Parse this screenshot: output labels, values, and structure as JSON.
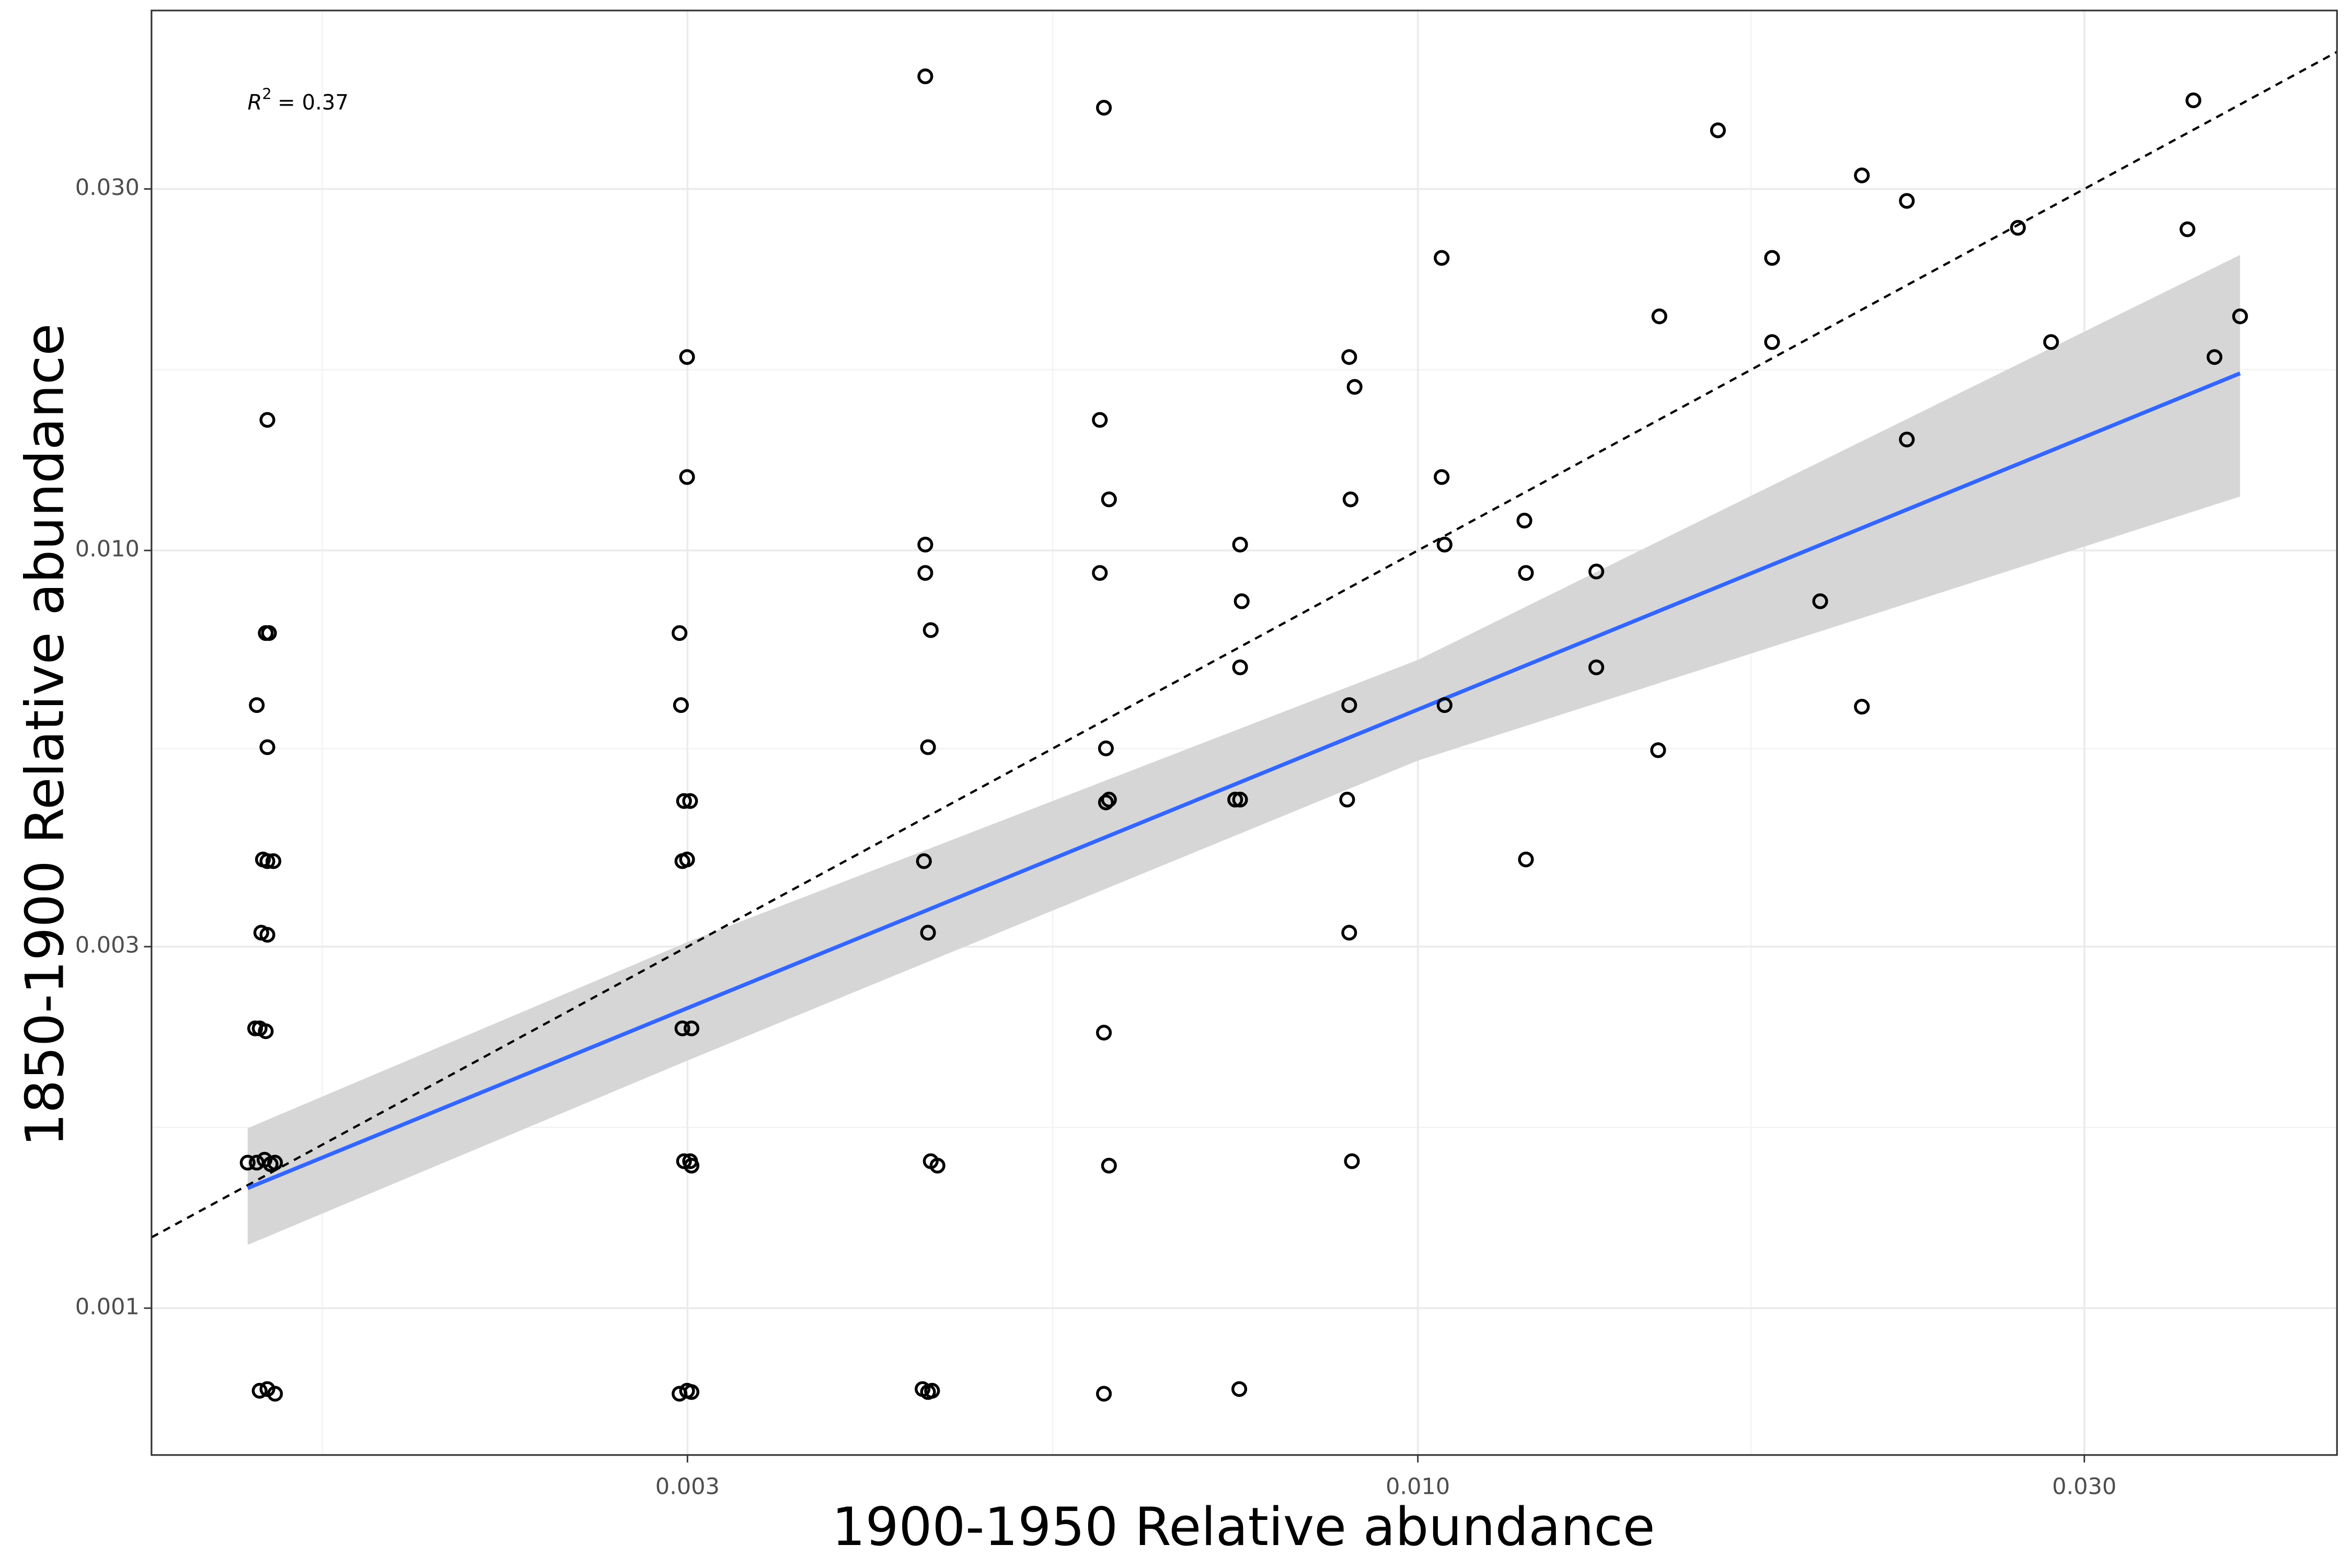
{
  "chart_data": {
    "type": "scatter",
    "x_label": "1900-1950 Relative abundance",
    "y_label": "1850-1900 Relative abundance",
    "annotation": [
      "R",
      "2",
      "= 0.37"
    ],
    "x_scale": "log",
    "y_scale": "log",
    "grid": true,
    "xlim": [
      0.00124,
      0.0455
    ],
    "ylim": [
      0.00064,
      0.0516
    ],
    "xticks": [
      0.003,
      {
        "value": 0.01,
        "label": "0.010"
      },
      {
        "value": 0.03,
        "label": "0.030"
      }
    ],
    "yticks": [
      0.001,
      0.003,
      {
        "value": 0.01,
        "label": "0.010"
      },
      {
        "value": 0.03,
        "label": "0.030"
      }
    ],
    "color": "#000000",
    "x": [
      0.001501,
      0.001497,
      0.001505,
      0.001475,
      0.001501,
      0.00149,
      0.001501,
      0.001516,
      0.001486,
      0.001501,
      0.001471,
      0.001482,
      0.001497,
      0.001453,
      0.001475,
      0.001494,
      0.001509,
      0.00152,
      0.001482,
      0.001501,
      0.00152,
      0.002998,
      0.002998,
      0.002961,
      0.002968,
      0.002983,
      0.003013,
      0.002975,
      0.002998,
      0.002975,
      0.00302,
      0.002983,
      0.003013,
      0.00302,
      0.002961,
      0.002998,
      0.00302,
      0.00444,
      0.00444,
      0.00444,
      0.00448,
      0.00446,
      0.00443,
      0.00446,
      0.00448,
      0.00453,
      0.00442,
      0.00446,
      0.00449,
      0.00596,
      0.00592,
      0.00601,
      0.00592,
      0.00598,
      0.00601,
      0.00598,
      0.00596,
      0.00601,
      0.00596,
      0.00746,
      0.00748,
      0.00746,
      0.0074,
      0.00746,
      0.00745,
      0.00893,
      0.00901,
      0.00895,
      0.00893,
      0.0089,
      0.00893,
      0.00897,
      0.0104,
      0.0104,
      0.01045,
      0.01045,
      0.01192,
      0.01195,
      0.01195,
      0.01342,
      0.01342,
      0.01489,
      0.01486,
      0.0164,
      0.01793,
      0.01793,
      0.01941,
      0.02079,
      0.02079,
      0.02239,
      0.02239,
      0.02689,
      0.0284,
      0.03591,
      0.03556,
      0.03718,
      0.03878
    ],
    "y": [
      0.01487,
      0.00778,
      0.00778,
      0.00625,
      0.0055,
      0.00391,
      0.00389,
      0.00389,
      0.00313,
      0.00311,
      0.00234,
      0.00234,
      0.00232,
      0.001556,
      0.001556,
      0.00157,
      0.001549,
      0.001556,
      0.000778,
      0.000782,
      0.000771,
      0.018,
      0.0125,
      0.00778,
      0.00625,
      0.00467,
      0.00467,
      0.00389,
      0.00391,
      0.00234,
      0.00234,
      0.001563,
      0.001563,
      0.001542,
      0.000771,
      0.000778,
      0.000775,
      0.04224,
      0.01018,
      0.00934,
      0.00785,
      0.0055,
      0.00389,
      0.00313,
      0.001563,
      0.001542,
      0.000782,
      0.000775,
      0.000778,
      0.0384,
      0.01487,
      0.01168,
      0.00934,
      0.00548,
      0.00469,
      0.00465,
      0.00231,
      0.001542,
      0.000771,
      0.01018,
      0.00857,
      0.00701,
      0.00469,
      0.00469,
      0.000782,
      0.018,
      0.01644,
      0.01168,
      0.00625,
      0.00469,
      0.00313,
      0.001563,
      0.02433,
      0.0125,
      0.01018,
      0.00625,
      0.01095,
      0.00934,
      0.00391,
      0.00938,
      0.00701,
      0.02037,
      0.00545,
      0.03585,
      0.02433,
      0.01884,
      0.00857,
      0.03126,
      0.00622,
      0.02893,
      0.01401,
      0.02666,
      0.01884,
      0.03927,
      0.02654,
      0.018,
      0.02037
    ],
    "fit": {
      "color": "#3366ff",
      "band_color": "#d6d6d6",
      "x": [
        0.001453,
        0.003,
        0.01,
        0.03878
      ],
      "y": [
        0.00144,
        0.002489,
        0.006166,
        0.01713
      ],
      "ymin": [
        0.001212,
        0.002122,
        0.00528,
        0.01178
      ],
      "ymax": [
        0.001728,
        0.003042,
        0.00717,
        0.02455
      ]
    }
  }
}
